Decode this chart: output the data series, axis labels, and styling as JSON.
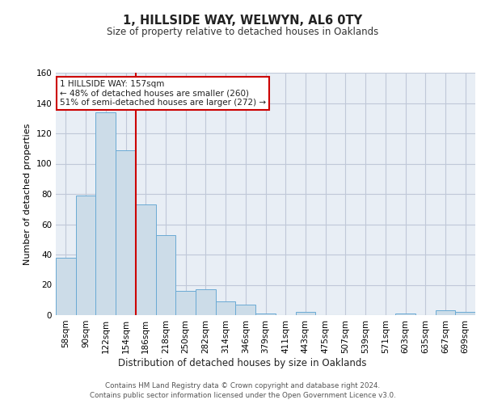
{
  "title": "1, HILLSIDE WAY, WELWYN, AL6 0TY",
  "subtitle": "Size of property relative to detached houses in Oaklands",
  "xlabel": "Distribution of detached houses by size in Oaklands",
  "ylabel": "Number of detached properties",
  "bar_labels": [
    "58sqm",
    "90sqm",
    "122sqm",
    "154sqm",
    "186sqm",
    "218sqm",
    "250sqm",
    "282sqm",
    "314sqm",
    "346sqm",
    "379sqm",
    "411sqm",
    "443sqm",
    "475sqm",
    "507sqm",
    "539sqm",
    "571sqm",
    "603sqm",
    "635sqm",
    "667sqm",
    "699sqm"
  ],
  "bar_values": [
    38,
    79,
    134,
    109,
    73,
    53,
    16,
    17,
    9,
    7,
    1,
    0,
    2,
    0,
    0,
    0,
    0,
    1,
    0,
    3,
    2
  ],
  "bar_color": "#ccdce8",
  "bar_edge_color": "#6aaad4",
  "vline_color": "#cc0000",
  "annotation_text": "1 HILLSIDE WAY: 157sqm\n← 48% of detached houses are smaller (260)\n51% of semi-detached houses are larger (272) →",
  "annotation_box_color": "#ffffff",
  "annotation_border_color": "#cc0000",
  "ylim": [
    0,
    160
  ],
  "yticks": [
    0,
    20,
    40,
    60,
    80,
    100,
    120,
    140,
    160
  ],
  "background_color": "#ffffff",
  "plot_bg_color": "#e8eef5",
  "grid_color": "#c0c8d8",
  "footer_line1": "Contains HM Land Registry data © Crown copyright and database right 2024.",
  "footer_line2": "Contains public sector information licensed under the Open Government Licence v3.0."
}
